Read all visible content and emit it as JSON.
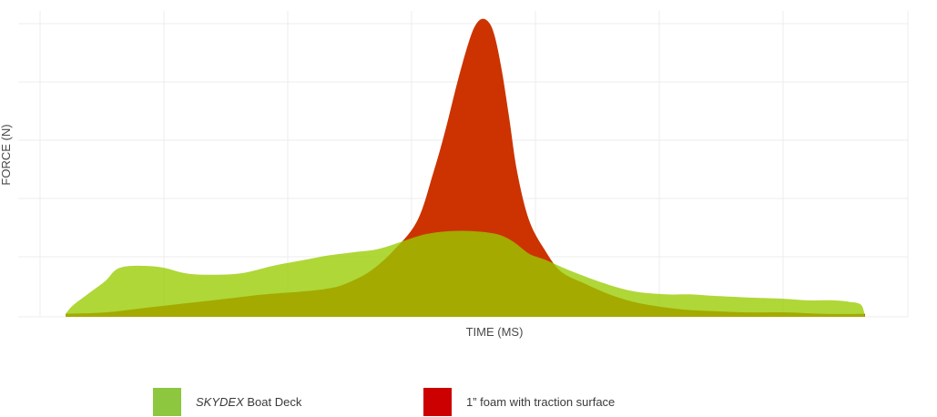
{
  "chart_data": {
    "type": "area",
    "xlabel": "TIME (MS)",
    "ylabel": "FORCE (N)",
    "xlim": [
      0,
      100
    ],
    "ylim": [
      0,
      100
    ],
    "grid": true,
    "legend_position": "bottom",
    "series": [
      {
        "color": "#cc3300",
        "x": [
          0,
          5,
          10,
          15,
          20,
          25,
          30,
          33,
          35,
          38,
          41,
          44,
          46,
          47.5,
          49,
          50.5,
          51.5,
          52.5,
          53.5,
          54.5,
          55.5,
          56.5,
          58,
          60,
          62,
          65,
          68,
          71,
          74,
          77,
          80,
          85,
          90,
          95,
          100
        ],
        "y": [
          1,
          1.5,
          3,
          4.5,
          6,
          7.5,
          8.5,
          9.5,
          11,
          15,
          22,
          32,
          48,
          62,
          78,
          92,
          98,
          99,
          95,
          83,
          66,
          48,
          32,
          22,
          15,
          11,
          7.5,
          5,
          3.5,
          2.5,
          2,
          1.5,
          1.5,
          1,
          1
        ]
      },
      {
        "color": "#99cc00",
        "x": [
          0,
          1,
          3,
          5,
          6,
          7,
          9,
          12,
          15,
          18,
          22,
          26,
          30,
          33,
          36,
          39,
          42,
          45,
          48,
          51,
          54,
          56,
          58,
          60,
          63,
          67,
          71,
          75,
          78,
          81,
          85,
          90,
          93,
          96,
          98,
          99.5,
          100
        ],
        "y": [
          1,
          4,
          8,
          12,
          15,
          16.5,
          17,
          16.5,
          14.5,
          14,
          14.5,
          17,
          19,
          20.5,
          21.5,
          22.5,
          25,
          27.5,
          28.5,
          28.5,
          27.5,
          25,
          21,
          19,
          15.5,
          11.5,
          8.5,
          7.5,
          7.5,
          7,
          6.5,
          6,
          5.5,
          5.5,
          5,
          4,
          0
        ]
      }
    ]
  },
  "legend": {
    "items": [
      {
        "brand": "SKYDEX",
        "text": " Boat Deck",
        "color": "#8dc63f"
      },
      {
        "text": "1” foam with traction surface",
        "color": "#cc0000"
      }
    ]
  }
}
